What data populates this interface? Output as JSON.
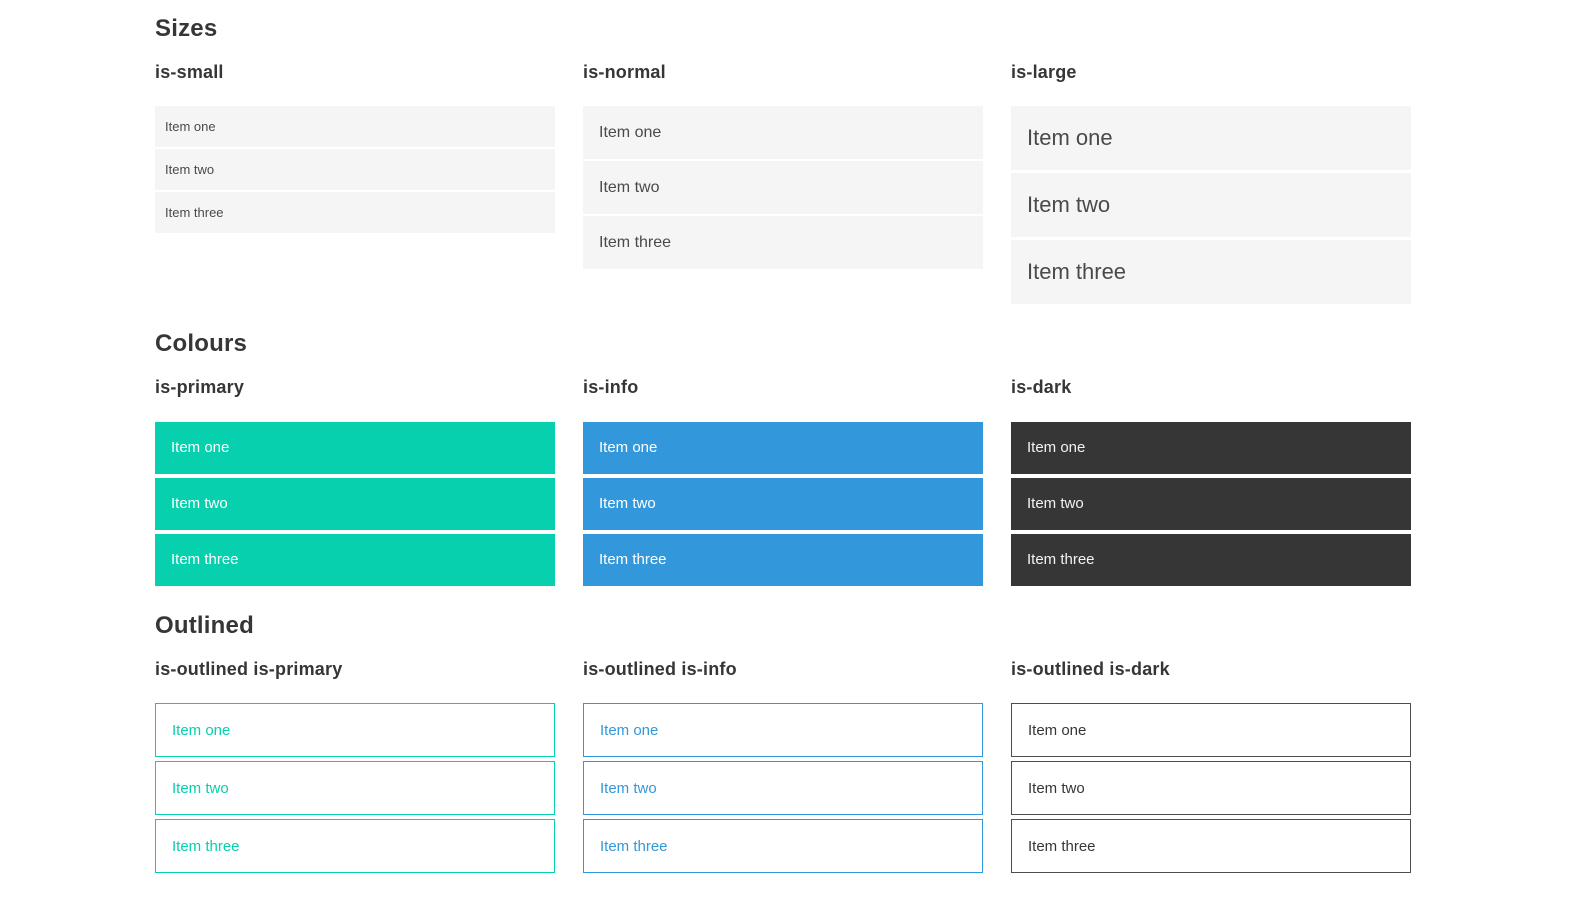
{
  "colors": {
    "primary": "#06d0ae",
    "info": "#3298db",
    "dark": "#363636",
    "outline_dark": "#4d4d4d",
    "light": "#f5f5f5",
    "heading": "#363636",
    "text": "#4a4a4a"
  },
  "sections": [
    {
      "title": "Sizes",
      "groups": [
        {
          "label": "is-small",
          "variant": "small",
          "items": [
            "Item one",
            "Item two",
            "Item three"
          ]
        },
        {
          "label": "is-normal",
          "variant": "normal",
          "items": [
            "Item one",
            "Item two",
            "Item three"
          ]
        },
        {
          "label": "is-large",
          "variant": "large",
          "items": [
            "Item one",
            "Item two",
            "Item three"
          ]
        }
      ]
    },
    {
      "title": "Colours",
      "groups": [
        {
          "label": "is-primary",
          "variant": "primary",
          "items": [
            "Item one",
            "Item two",
            "Item three"
          ]
        },
        {
          "label": "is-info",
          "variant": "info",
          "items": [
            "Item one",
            "Item two",
            "Item three"
          ]
        },
        {
          "label": "is-dark",
          "variant": "dark",
          "items": [
            "Item one",
            "Item two",
            "Item three"
          ]
        }
      ]
    },
    {
      "title": "Outlined",
      "groups": [
        {
          "label": "is-outlined is-primary",
          "variant": "outlined-primary",
          "items": [
            "Item one",
            "Item two",
            "Item three"
          ]
        },
        {
          "label": "is-outlined is-info",
          "variant": "outlined-info",
          "items": [
            "Item one",
            "Item two",
            "Item three"
          ]
        },
        {
          "label": "is-outlined is-dark",
          "variant": "outlined-dark",
          "items": [
            "Item one",
            "Item two",
            "Item three"
          ]
        }
      ]
    }
  ]
}
